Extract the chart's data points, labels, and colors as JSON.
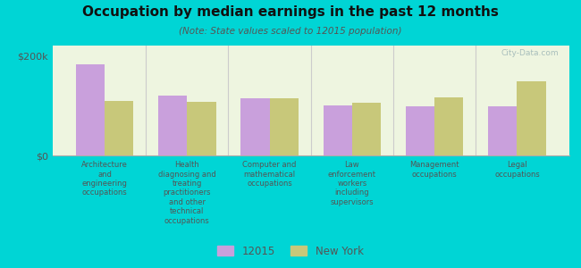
{
  "title": "Occupation by median earnings in the past 12 months",
  "subtitle": "(Note: State values scaled to 12015 population)",
  "categories": [
    "Architecture\nand\nengineering\noccupations",
    "Health\ndiagnosing and\ntreating\npractitioners\nand other\ntechnical\noccupations",
    "Computer and\nmathematical\noccupations",
    "Law\nenforcement\nworkers\nincluding\nsupervisors",
    "Management\noccupations",
    "Legal\noccupations"
  ],
  "values_12015": [
    182000,
    120000,
    115000,
    100000,
    98000,
    98000
  ],
  "values_ny": [
    110000,
    108000,
    115000,
    105000,
    117000,
    148000
  ],
  "color_12015": "#c9a0dc",
  "color_ny": "#c8c87a",
  "background_outer": "#00d5d5",
  "background_plot": "#eef5e0",
  "ylabel_0": "$0",
  "ylabel_200k": "$200k",
  "ylim": [
    0,
    220000
  ],
  "bar_width": 0.35,
  "legend_labels": [
    "12015",
    "New York"
  ],
  "watermark": "City-Data.com"
}
